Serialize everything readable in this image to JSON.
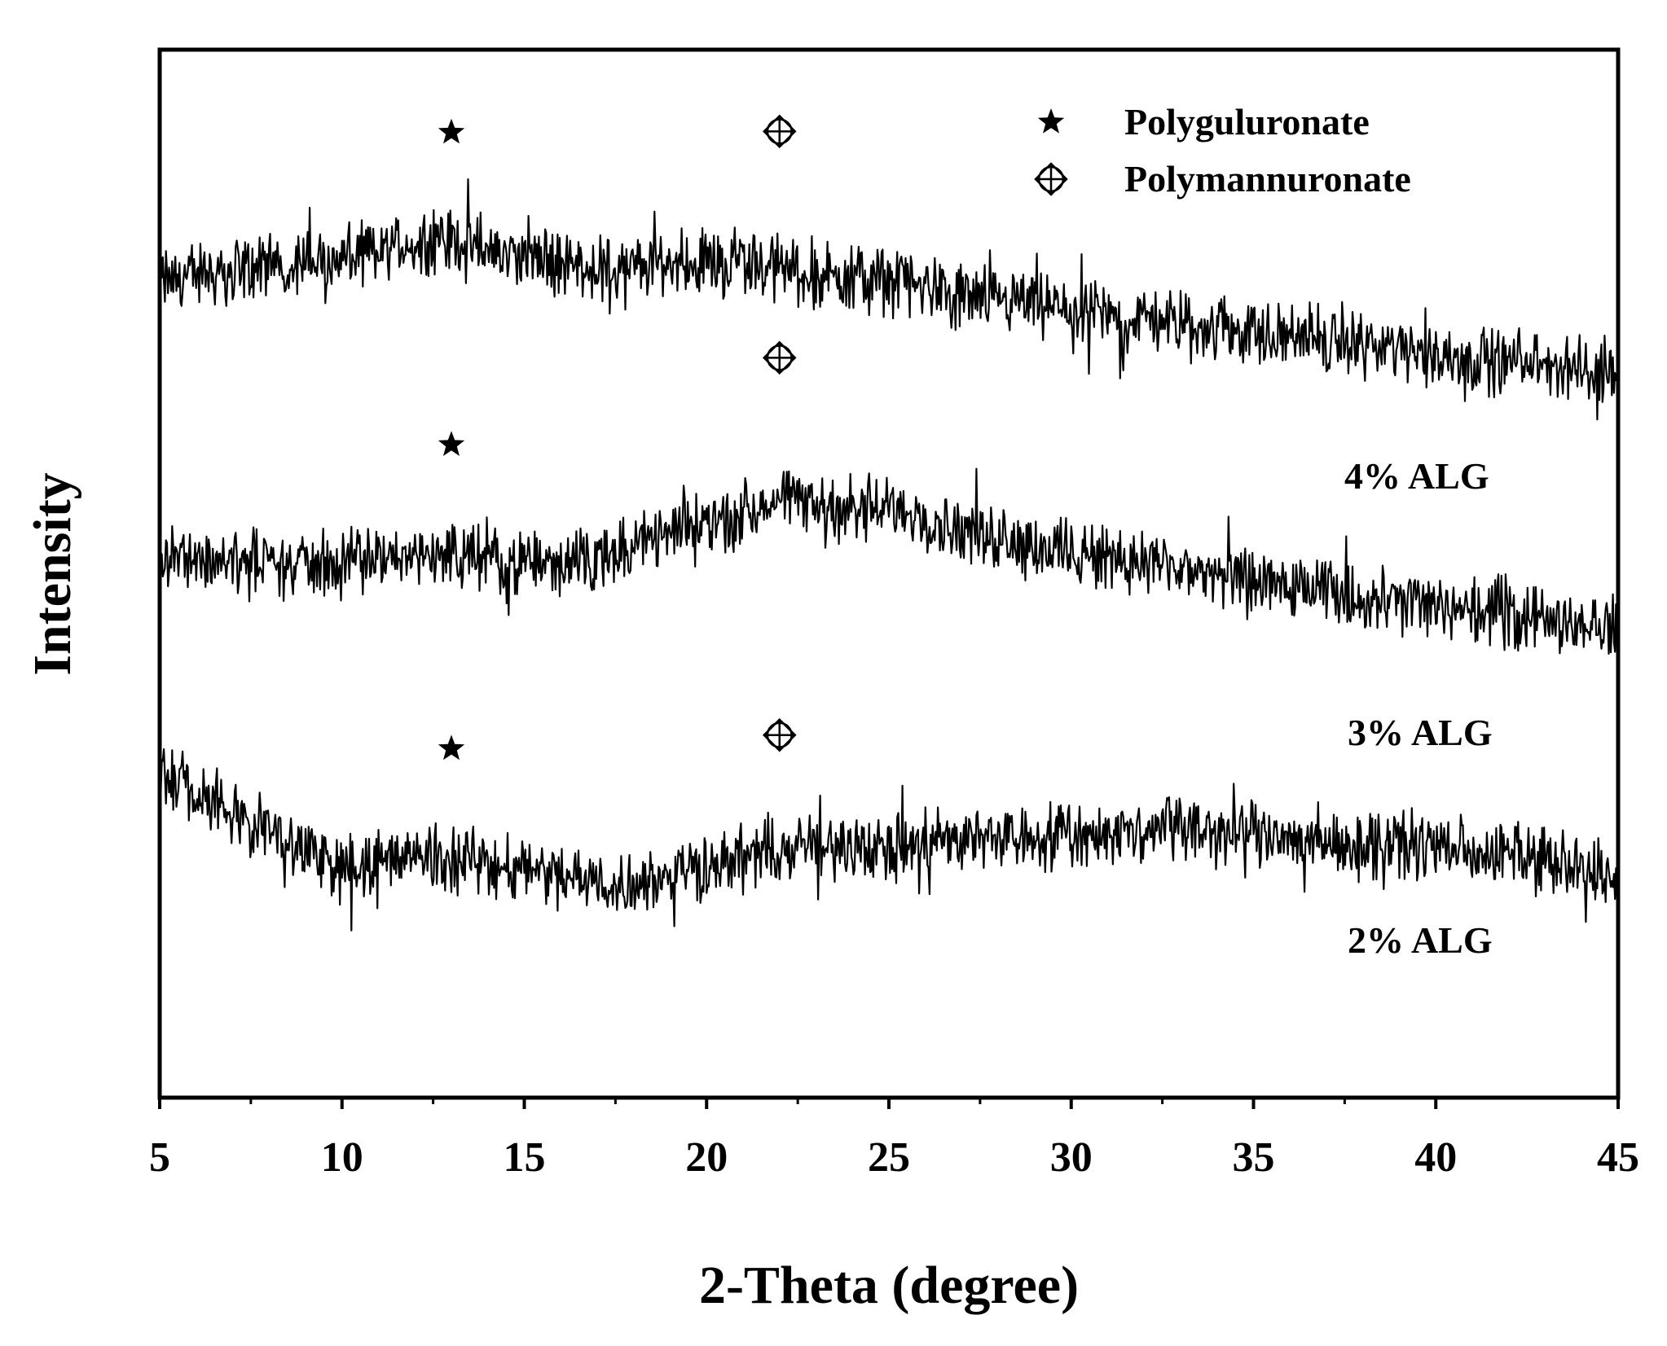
{
  "chart_data": {
    "type": "line",
    "xlabel": "2-Theta (degree)",
    "ylabel": "Intensity",
    "xlim": [
      5,
      45
    ],
    "x_ticks": [
      "5",
      "10",
      "15",
      "20",
      "25",
      "30",
      "35",
      "40",
      "45"
    ],
    "y_ticks": [],
    "grid": false,
    "legend_position": "top-right",
    "legend": [
      {
        "marker": "star-icon",
        "label": "Polyguluronate"
      },
      {
        "marker": "circled-diamond-cross-icon",
        "label": "Polymannuronate"
      }
    ],
    "peak_markers": [
      {
        "series": "4% ALG",
        "marker": "star-icon",
        "x": 13
      },
      {
        "series": "4% ALG",
        "marker": "circled-diamond-cross-icon",
        "x": 22
      },
      {
        "series": "3% ALG",
        "marker": "star-icon",
        "x": 13
      },
      {
        "series": "3% ALG",
        "marker": "circled-diamond-cross-icon",
        "x": 22
      },
      {
        "series": "2% ALG",
        "marker": "star-icon",
        "x": 13
      },
      {
        "series": "2% ALG",
        "marker": "circled-diamond-cross-icon",
        "x": 22
      }
    ],
    "series": [
      {
        "name": "4% ALG",
        "color": "#000000",
        "x": [
          5,
          7.5,
          10,
          12.5,
          15,
          17.5,
          20,
          22.5,
          25,
          27.5,
          30,
          32.5,
          35,
          37.5,
          40,
          42.5,
          45
        ],
        "y": [
          0.78,
          0.79,
          0.8,
          0.82,
          0.8,
          0.79,
          0.8,
          0.79,
          0.78,
          0.76,
          0.75,
          0.74,
          0.73,
          0.72,
          0.71,
          0.7,
          0.69
        ]
      },
      {
        "name": "3% ALG",
        "color": "#000000",
        "x": [
          5,
          7.5,
          10,
          12.5,
          15,
          17.5,
          20,
          22.5,
          25,
          27.5,
          30,
          32.5,
          35,
          37.5,
          40,
          42.5,
          45
        ],
        "y": [
          0.52,
          0.51,
          0.51,
          0.52,
          0.51,
          0.52,
          0.55,
          0.57,
          0.56,
          0.54,
          0.52,
          0.51,
          0.49,
          0.48,
          0.47,
          0.46,
          0.45
        ]
      },
      {
        "name": "2% ALG",
        "color": "#000000",
        "x": [
          5,
          7.5,
          10,
          12.5,
          15,
          17.5,
          20,
          22.5,
          25,
          27.5,
          30,
          32.5,
          35,
          37.5,
          40,
          42.5,
          45
        ],
        "y": [
          0.31,
          0.26,
          0.22,
          0.23,
          0.22,
          0.2,
          0.22,
          0.24,
          0.24,
          0.25,
          0.25,
          0.26,
          0.25,
          0.24,
          0.24,
          0.23,
          0.21
        ]
      }
    ]
  }
}
